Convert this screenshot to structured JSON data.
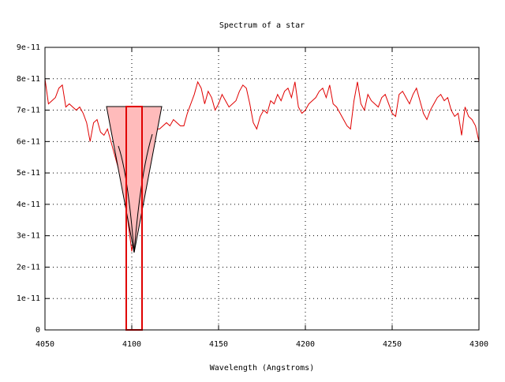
{
  "chart_data": {
    "type": "line",
    "title": "Spectrum of a star",
    "x_label": "Wavelength (Angstroms)",
    "color": "#e00000",
    "grid": true,
    "xlim": [
      4050,
      4300
    ],
    "xticks": [
      4050,
      4100,
      4150,
      4200,
      4250,
      4300
    ],
    "ylim": [
      0,
      9e-11
    ],
    "yticks": [
      0,
      {
        "value": 1e-11,
        "label": "1e-11"
      },
      {
        "value": 2e-11,
        "label": "2e-11"
      },
      {
        "value": 3e-11,
        "label": "3e-11"
      },
      {
        "value": 4e-11,
        "label": "4e-11"
      },
      {
        "value": 5e-11,
        "label": "5e-11"
      },
      {
        "value": 6e-11,
        "label": "6e-11"
      },
      {
        "value": 7e-11,
        "label": "7e-11"
      },
      {
        "value": 8e-11,
        "label": "8e-11"
      },
      {
        "value": 9e-11,
        "label": "9e-11"
      }
    ],
    "x": [
      4050,
      4052,
      4054,
      4056,
      4058,
      4060,
      4062,
      4064,
      4066,
      4068,
      4070,
      4072,
      4074,
      4076,
      4078,
      4080,
      4082,
      4084,
      4086,
      4090,
      4094,
      4097,
      4100,
      4103,
      4106,
      4110,
      4113,
      4116,
      4120,
      4122,
      4124,
      4126,
      4128,
      4130,
      4132,
      4134,
      4136,
      4138,
      4140,
      4142,
      4144,
      4146,
      4148,
      4150,
      4152,
      4154,
      4156,
      4158,
      4160,
      4162,
      4164,
      4166,
      4168,
      4170,
      4172,
      4174,
      4176,
      4178,
      4180,
      4182,
      4184,
      4186,
      4188,
      4190,
      4192,
      4194,
      4196,
      4198,
      4200,
      4202,
      4204,
      4206,
      4208,
      4210,
      4212,
      4214,
      4216,
      4218,
      4220,
      4222,
      4224,
      4226,
      4228,
      4230,
      4232,
      4234,
      4236,
      4238,
      4240,
      4242,
      4244,
      4246,
      4248,
      4250,
      4252,
      4254,
      4256,
      4258,
      4260,
      4262,
      4264,
      4266,
      4268,
      4270,
      4272,
      4274,
      4276,
      4278,
      4280,
      4282,
      4284,
      4286,
      4288,
      4290,
      4292,
      4294,
      4296,
      4298,
      4300
    ],
    "values": [
      8e-11,
      7.2e-11,
      7.3e-11,
      7.4e-11,
      7.7e-11,
      7.8e-11,
      7.1e-11,
      7.2e-11,
      7.1e-11,
      7e-11,
      7.1e-11,
      6.9e-11,
      6.6e-11,
      6e-11,
      6.6e-11,
      6.7e-11,
      6.3e-11,
      6.2e-11,
      6.4e-11,
      5.6e-11,
      4.8e-11,
      3.8e-11,
      2.5e-11,
      3.8e-11,
      5.2e-11,
      6.1e-11,
      6.4e-11,
      6.4e-11,
      6.6e-11,
      6.5e-11,
      6.7e-11,
      6.6e-11,
      6.5e-11,
      6.5e-11,
      6.9e-11,
      7.2e-11,
      7.5e-11,
      7.9e-11,
      7.7e-11,
      7.2e-11,
      7.6e-11,
      7.4e-11,
      7e-11,
      7.2e-11,
      7.5e-11,
      7.3e-11,
      7.1e-11,
      7.2e-11,
      7.3e-11,
      7.6e-11,
      7.8e-11,
      7.7e-11,
      7.2e-11,
      6.6e-11,
      6.4e-11,
      6.8e-11,
      7e-11,
      6.9e-11,
      7.3e-11,
      7.2e-11,
      7.5e-11,
      7.3e-11,
      7.6e-11,
      7.7e-11,
      7.4e-11,
      7.9e-11,
      7.1e-11,
      6.9e-11,
      7e-11,
      7.2e-11,
      7.3e-11,
      7.4e-11,
      7.6e-11,
      7.7e-11,
      7.4e-11,
      7.8e-11,
      7.2e-11,
      7.1e-11,
      6.9e-11,
      6.7e-11,
      6.5e-11,
      6.4e-11,
      7.3e-11,
      7.9e-11,
      7.2e-11,
      7e-11,
      7.5e-11,
      7.3e-11,
      7.2e-11,
      7.1e-11,
      7.4e-11,
      7.5e-11,
      7.2e-11,
      6.9e-11,
      6.8e-11,
      7.5e-11,
      7.6e-11,
      7.4e-11,
      7.2e-11,
      7.5e-11,
      7.7e-11,
      7.3e-11,
      6.9e-11,
      6.7e-11,
      7e-11,
      7.2e-11,
      7.4e-11,
      7.5e-11,
      7.3e-11,
      7.4e-11,
      7e-11,
      6.8e-11,
      6.9e-11,
      6.2e-11,
      7.1e-11,
      6.8e-11,
      6.7e-11,
      6.5e-11,
      6e-11
    ]
  }
}
